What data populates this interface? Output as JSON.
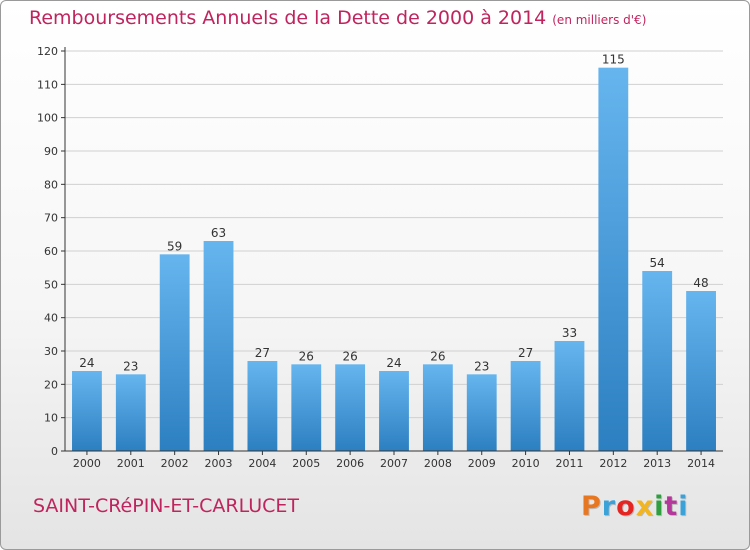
{
  "header": {
    "title": "Remboursements Annuels de la Dette de 2000 à 2014",
    "unit": "(en milliers d'€)"
  },
  "footer": {
    "commune": "SAINT-CRéPIN-ET-CARLUCET",
    "logo_text": "Proxiti",
    "logo_colors": [
      "#e87722",
      "#3aa2d8",
      "#e52521",
      "#f1b521",
      "#2e9e3e",
      "#b5379b",
      "#3aa2d8"
    ]
  },
  "colors": {
    "bar_light": "#66b5ef",
    "bar_dark": "#2c7fc0",
    "axis": "#333333",
    "grid": "#d0d0d0",
    "accent": "#c0245c"
  },
  "chart_data": {
    "type": "bar",
    "title": "Remboursements Annuels de la Dette de 2000 à 2014",
    "ylabel": "(en milliers d'€)",
    "categories": [
      "2000",
      "2001",
      "2002",
      "2003",
      "2004",
      "2005",
      "2006",
      "2007",
      "2008",
      "2009",
      "2010",
      "2011",
      "2012",
      "2013",
      "2014"
    ],
    "values": [
      24,
      23,
      59,
      63,
      27,
      26,
      26,
      24,
      26,
      23,
      27,
      33,
      115,
      54,
      48
    ],
    "ylim": [
      0,
      120
    ],
    "yticks": [
      0,
      10,
      20,
      30,
      40,
      50,
      60,
      70,
      80,
      90,
      100,
      110,
      120
    ],
    "grid": true,
    "legend": "none"
  }
}
